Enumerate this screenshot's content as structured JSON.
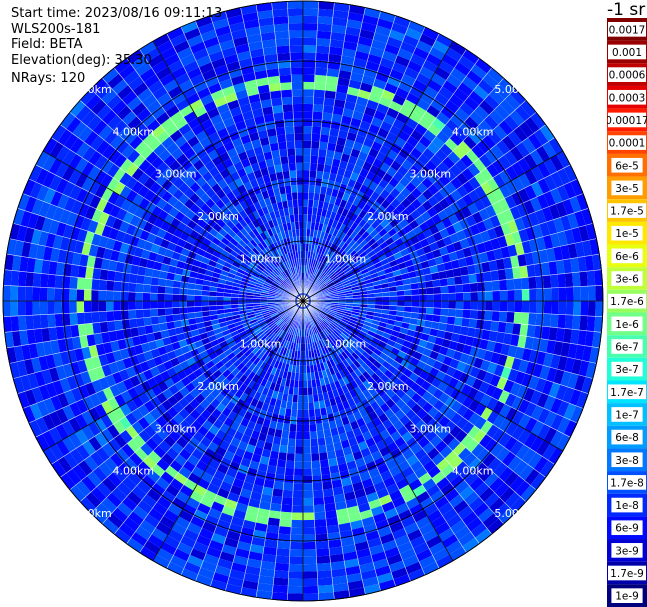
{
  "header": {
    "start_time": "Start time: 2023/08/16 09:11:13",
    "instrument": "WLS200s-181",
    "field": "Field: BETA",
    "elevation": "Elevation(deg): 35.30",
    "nrays": "NRays: 120"
  },
  "colorbar": {
    "unit": "-1 sr",
    "labels": [
      "0.0017",
      "0.001",
      "0.0006",
      "0.0003",
      "0.00017",
      "0.0001",
      "6e-5",
      "3e-5",
      "1.7e-5",
      "1e-5",
      "6e-6",
      "3e-6",
      "1.7e-6",
      "1e-6",
      "6e-7",
      "3e-7",
      "1.7e-7",
      "1e-7",
      "6e-8",
      "3e-8",
      "1.7e-8",
      "1e-8",
      "6e-9",
      "3e-9",
      "1.7e-9",
      "1e-9"
    ],
    "colors": [
      "#800000",
      "#9a0000",
      "#c00000",
      "#e60000",
      "#ff1a00",
      "#ff4400",
      "#ff7000",
      "#ff9c00",
      "#ffc400",
      "#ffe800",
      "#e8ff10",
      "#c0ff38",
      "#98ff60",
      "#70ff88",
      "#48ffb0",
      "#20ffd8",
      "#00e4ff",
      "#00c0ff",
      "#009cff",
      "#0078ff",
      "#0050ff",
      "#0028ff",
      "#0008ff",
      "#0000d4",
      "#0000a8",
      "#00007c"
    ]
  },
  "chart_data": {
    "type": "heatmap",
    "projection": "polar PPI",
    "field": "BETA",
    "elevation_deg": 35.3,
    "n_rays": 120,
    "range_rings_km": [
      1,
      2,
      3,
      4,
      5
    ],
    "ring_labels": [
      "1.00km",
      "2.00km",
      "3.00km",
      "4.00km",
      "5.00km"
    ],
    "max_range_km": 5.0,
    "color_scale": "log",
    "value_range": [
      1e-09,
      0.0017
    ],
    "typical_value": 1e-08,
    "enhanced_ring_value": 1.7e-06,
    "enhanced_ring_range_km": 3.7
  }
}
